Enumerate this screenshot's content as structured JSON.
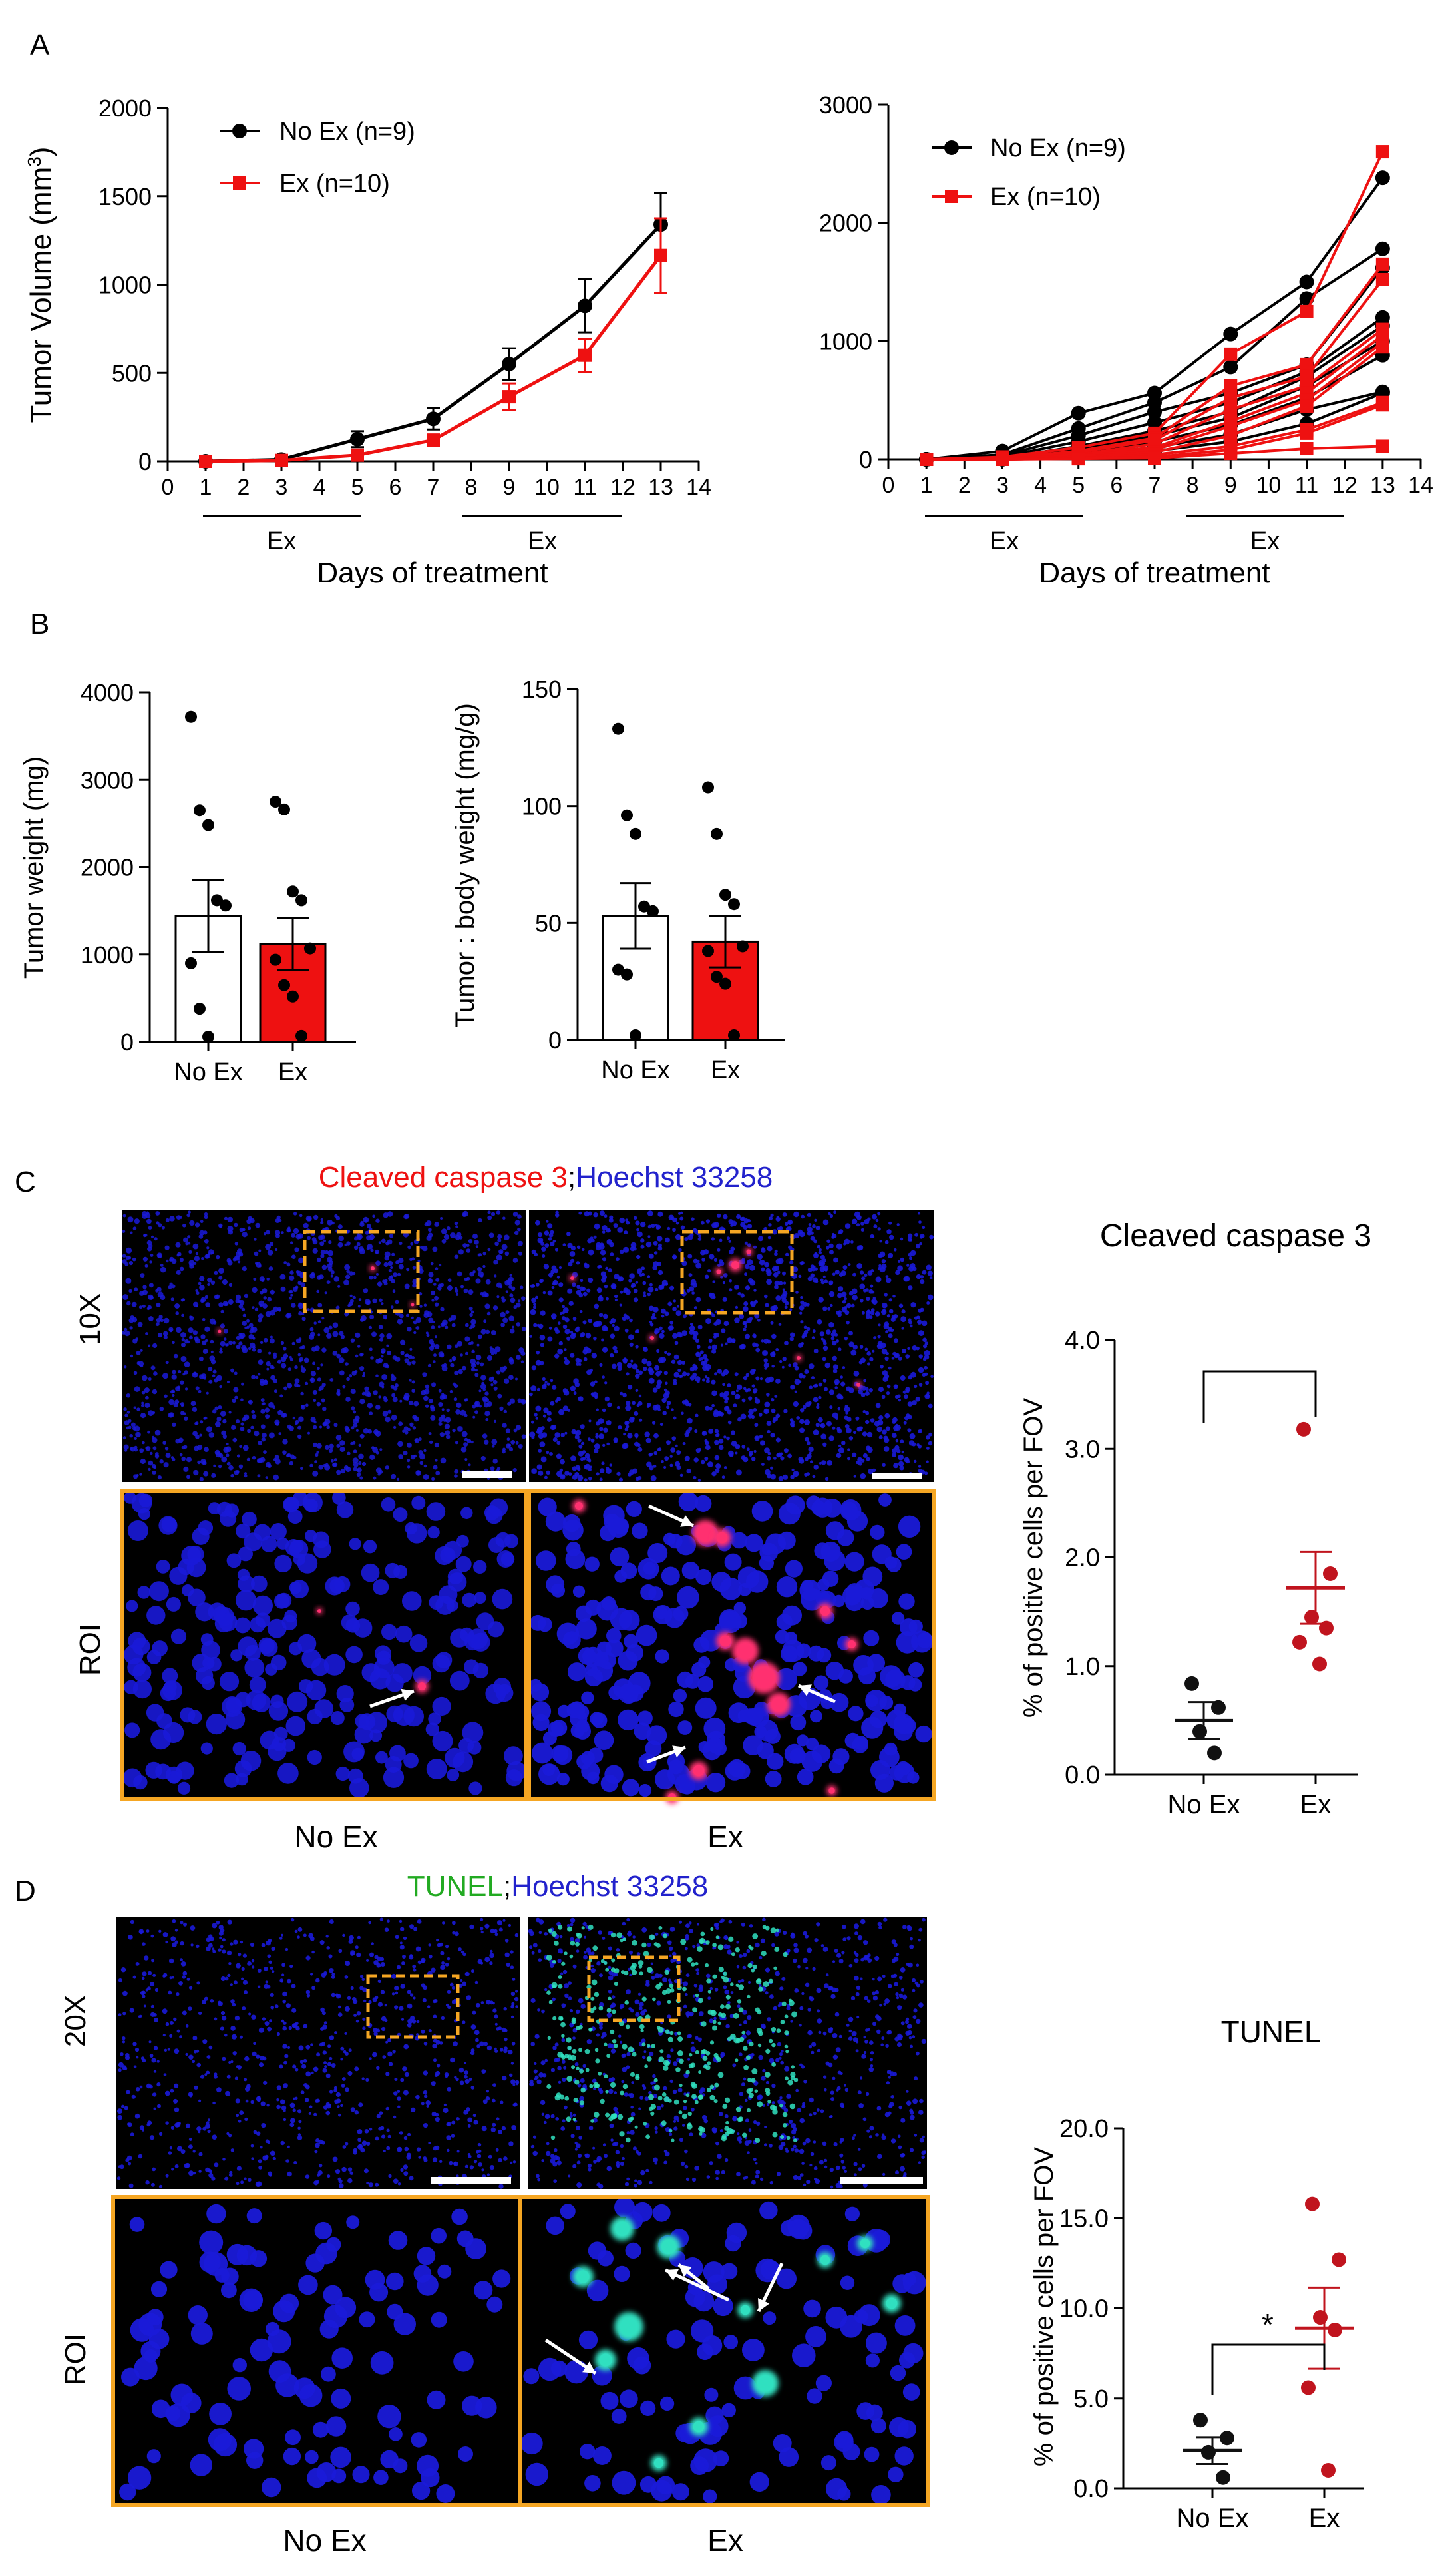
{
  "figure": {
    "panel_a": {
      "letter": "A",
      "left_legend": [
        "No Ex (n=9)",
        "Ex (n=10)"
      ],
      "right_legend": [
        "No Ex (n=9)",
        "Ex (n=10)"
      ],
      "ex_label": "Ex",
      "xlabel": "Days of treatment",
      "ylabel_main": "Tumor Volume (mm",
      "ylabel_sup": "3",
      "ylabel_end": ")"
    },
    "panel_b": {
      "letter": "B"
    },
    "panel_c": {
      "letter": "C",
      "title_red": "Cleaved caspase 3",
      "title_sep": ";",
      "title_blue": "Hoechst 33258",
      "row_top": "10X",
      "row_bottom": "ROI",
      "col_left": "No Ex",
      "col_right": "Ex"
    },
    "panel_d": {
      "letter": "D",
      "title_green": "TUNEL",
      "title_sep": ";",
      "title_blue": "Hoechst 33258",
      "row_top": "20X",
      "row_bottom": "ROI",
      "col_left": "No Ex",
      "col_right": "Ex"
    }
  },
  "colors": {
    "no_ex": "#000000",
    "ex": "#ee1111",
    "ex_dark": "#c0141e",
    "roi_box": "#f5a623",
    "hoechst": "#1a1ad8",
    "caspase": "#ff3070",
    "tunel": "#30e0c0"
  },
  "chart_data": [
    {
      "id": "A-mean",
      "type": "line",
      "title": "",
      "ylabel": "Tumor Volume (mm3)",
      "xlabel": "Days of treatment",
      "xlim": [
        0,
        14
      ],
      "ylim": [
        0,
        2000
      ],
      "xticks": [
        0,
        1,
        2,
        3,
        4,
        5,
        6,
        7,
        8,
        9,
        10,
        11,
        12,
        13,
        14
      ],
      "yticks": [
        0,
        500,
        1000,
        1500,
        2000
      ],
      "legend_position": "top-left",
      "x": [
        1,
        3,
        5,
        7,
        9,
        11,
        13
      ],
      "series": [
        {
          "name": "No Ex (n=9)",
          "values": [
            0,
            10,
            125,
            240,
            550,
            880,
            1340
          ],
          "error": [
            0,
            8,
            45,
            60,
            90,
            150,
            180
          ]
        },
        {
          "name": "Ex (n=10)",
          "values": [
            0,
            5,
            35,
            120,
            365,
            600,
            1165
          ],
          "error": [
            0,
            5,
            15,
            30,
            75,
            95,
            210
          ]
        }
      ],
      "treatment_periods": [
        [
          1,
          5
        ],
        [
          8,
          12
        ]
      ]
    },
    {
      "id": "A-individual",
      "type": "line",
      "title": "",
      "xlabel": "Days of treatment",
      "xlim": [
        0,
        14
      ],
      "ylim": [
        0,
        3000
      ],
      "xticks": [
        0,
        1,
        2,
        3,
        4,
        5,
        6,
        7,
        8,
        9,
        10,
        11,
        12,
        13,
        14
      ],
      "yticks": [
        0,
        1000,
        2000,
        3000
      ],
      "legend_position": "top-left",
      "x": [
        1,
        3,
        5,
        7,
        9,
        11,
        13
      ],
      "series": [
        {
          "name": "No Ex (n=9)",
          "group": "no_ex",
          "values": [
            0,
            70,
            390,
            560,
            1060,
            1500,
            2380
          ]
        },
        {
          "name": "",
          "group": "no_ex",
          "values": [
            0,
            40,
            260,
            480,
            780,
            1360,
            1780
          ]
        },
        {
          "name": "",
          "group": "no_ex",
          "values": [
            0,
            30,
            200,
            400,
            560,
            800,
            1620
          ]
        },
        {
          "name": "",
          "group": "no_ex",
          "values": [
            0,
            20,
            150,
            310,
            480,
            740,
            1200
          ]
        },
        {
          "name": "",
          "group": "no_ex",
          "values": [
            0,
            10,
            110,
            240,
            400,
            700,
            1130
          ]
        },
        {
          "name": "",
          "group": "no_ex",
          "values": [
            0,
            10,
            90,
            200,
            350,
            620,
            1000
          ]
        },
        {
          "name": "",
          "group": "no_ex",
          "values": [
            0,
            5,
            60,
            150,
            290,
            520,
            880
          ]
        },
        {
          "name": "",
          "group": "no_ex",
          "values": [
            0,
            5,
            40,
            100,
            210,
            420,
            570
          ]
        },
        {
          "name": "",
          "group": "no_ex",
          "values": [
            0,
            0,
            30,
            70,
            150,
            300,
            560
          ]
        },
        {
          "name": "Ex (n=10)",
          "group": "ex",
          "values": [
            0,
            20,
            100,
            220,
            890,
            1250,
            2600
          ]
        },
        {
          "name": "",
          "group": "ex",
          "values": [
            0,
            10,
            70,
            180,
            620,
            800,
            1650
          ]
        },
        {
          "name": "",
          "group": "ex",
          "values": [
            0,
            10,
            60,
            160,
            520,
            700,
            1520
          ]
        },
        {
          "name": "",
          "group": "ex",
          "values": [
            0,
            5,
            40,
            130,
            420,
            620,
            1100
          ]
        },
        {
          "name": "",
          "group": "ex",
          "values": [
            0,
            5,
            40,
            100,
            320,
            560,
            1050
          ]
        },
        {
          "name": "",
          "group": "ex",
          "values": [
            0,
            5,
            30,
            80,
            280,
            500,
            990
          ]
        },
        {
          "name": "",
          "group": "ex",
          "values": [
            0,
            0,
            20,
            60,
            200,
            450,
            950
          ]
        },
        {
          "name": "",
          "group": "ex",
          "values": [
            0,
            0,
            10,
            40,
            110,
            250,
            480
          ]
        },
        {
          "name": "",
          "group": "ex",
          "values": [
            0,
            0,
            10,
            20,
            80,
            220,
            460
          ]
        },
        {
          "name": "",
          "group": "ex",
          "values": [
            0,
            0,
            5,
            10,
            50,
            90,
            110
          ]
        }
      ],
      "treatment_periods": [
        [
          1,
          5
        ],
        [
          8,
          12
        ]
      ]
    },
    {
      "id": "B-weight",
      "type": "bar",
      "title": "",
      "ylabel": "Tumor weight (mg)",
      "categories": [
        "No Ex",
        "Ex"
      ],
      "values": [
        1440,
        1120
      ],
      "error": [
        410,
        300
      ],
      "ylim": [
        0,
        4000
      ],
      "yticks": [
        0,
        1000,
        2000,
        3000,
        4000
      ],
      "points": [
        [
          3720,
          2650,
          2480,
          1620,
          1560,
          900,
          380,
          60
        ],
        [
          2750,
          2660,
          1720,
          1620,
          1070,
          940,
          650,
          520,
          70
        ]
      ]
    },
    {
      "id": "B-ratio",
      "type": "bar",
      "title": "",
      "ylabel": "Tumor : body weight (mg/g)",
      "categories": [
        "No Ex",
        "Ex"
      ],
      "values": [
        53,
        42
      ],
      "error": [
        14,
        11
      ],
      "ylim": [
        0,
        150
      ],
      "yticks": [
        0,
        50,
        100,
        150
      ],
      "points": [
        [
          133,
          96,
          88,
          57,
          55,
          30,
          28,
          2
        ],
        [
          108,
          88,
          62,
          58,
          40,
          38,
          27,
          24,
          2
        ]
      ]
    },
    {
      "id": "C-scatter",
      "type": "scatter",
      "title": "Cleaved caspase 3",
      "ylabel": "% of positive cells per FOV",
      "categories": [
        "No Ex",
        "Ex"
      ],
      "ylim": [
        0,
        4.0
      ],
      "yticks": [
        "0.0",
        "1.0",
        "2.0",
        "3.0",
        "4.0"
      ],
      "means": [
        0.5,
        1.72
      ],
      "sem": [
        0.17,
        0.33
      ],
      "points": [
        [
          0.84,
          0.62,
          0.4,
          0.2
        ],
        [
          3.18,
          1.85,
          1.45,
          1.35,
          1.22,
          1.02
        ]
      ],
      "significance": ""
    },
    {
      "id": "D-scatter",
      "type": "scatter",
      "title": "TUNEL",
      "ylabel": "% of positive cells per FOV",
      "categories": [
        "No Ex",
        "Ex"
      ],
      "ylim": [
        0,
        20.0
      ],
      "yticks": [
        "0.0",
        "5.0",
        "10.0",
        "15.0",
        "20.0"
      ],
      "means": [
        2.1,
        8.9
      ],
      "sem": [
        0.75,
        2.25
      ],
      "points": [
        [
          3.8,
          2.8,
          2.0,
          0.6
        ],
        [
          15.8,
          12.7,
          9.5,
          8.8,
          5.6,
          1.0
        ]
      ],
      "significance": "*"
    }
  ]
}
